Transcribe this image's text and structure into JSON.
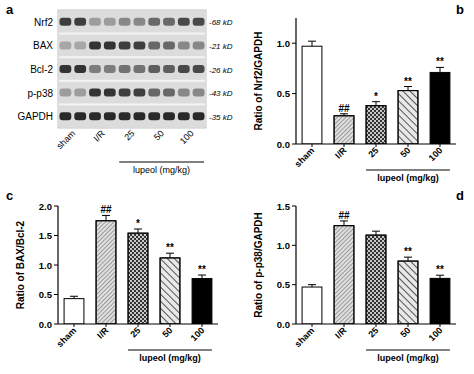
{
  "chart_data": [
    {
      "type": "blot",
      "panel": "a",
      "categories": [
        "sham",
        "I/R",
        "25",
        "50",
        "100"
      ],
      "x_group_label": "lupeol (mg/kg)",
      "rows": [
        {
          "name": "Nrf2",
          "size": "-68 kD",
          "intensities": [
            0.8,
            0.35,
            0.45,
            0.6,
            0.75
          ]
        },
        {
          "name": "BAX",
          "size": "-21 kD",
          "intensities": [
            0.3,
            0.85,
            0.8,
            0.6,
            0.45
          ]
        },
        {
          "name": "Bcl-2",
          "size": "-26 kD",
          "intensities": [
            0.85,
            0.5,
            0.55,
            0.65,
            0.75
          ]
        },
        {
          "name": "p-p38",
          "size": "-43 kD",
          "intensities": [
            0.35,
            0.85,
            0.8,
            0.6,
            0.45
          ]
        },
        {
          "name": "GAPDH",
          "size": "-35 kD",
          "intensities": [
            0.9,
            0.9,
            0.9,
            0.9,
            0.9
          ]
        }
      ]
    },
    {
      "type": "bar",
      "panel": "b",
      "y_label": "Ratio of Nrf2/GAPDH",
      "categories": [
        "sham",
        "I/R",
        "25",
        "50",
        "100"
      ],
      "x_group_label": "lupeol (mg/kg)",
      "values": [
        0.97,
        0.28,
        0.38,
        0.53,
        0.71
      ],
      "errors": [
        0.05,
        0.02,
        0.04,
        0.04,
        0.05
      ],
      "annotations": [
        null,
        "##",
        "*",
        "**",
        "**"
      ],
      "colors": [
        "#ffffff",
        "#e0e0e0",
        "#c8c8c8",
        "#e8e8e8",
        "#000000"
      ],
      "ylim": [
        0,
        1.25
      ],
      "yticks": [
        {
          "value": 0,
          "label": "0.0"
        },
        {
          "value": 0.5,
          "label": "0.5"
        },
        {
          "value": 1,
          "label": "1.0"
        }
      ]
    },
    {
      "type": "bar",
      "panel": "c",
      "y_label": "Ratio of BAX/Bcl-2",
      "categories": [
        "sham",
        "I/R",
        "25",
        "50",
        "100"
      ],
      "x_group_label": "lupeol (mg/kg)",
      "values": [
        0.43,
        1.75,
        1.54,
        1.12,
        0.77
      ],
      "errors": [
        0.04,
        0.09,
        0.07,
        0.08,
        0.06
      ],
      "annotations": [
        null,
        "##",
        "*",
        "**",
        "**"
      ],
      "colors": [
        "#ffffff",
        "#e0e0e0",
        "#c8c8c8",
        "#e8e8e8",
        "#000000"
      ],
      "ylim": [
        0,
        2
      ],
      "yticks": [
        {
          "value": 0,
          "label": "0.0"
        },
        {
          "value": 0.5,
          "label": "0.5"
        },
        {
          "value": 1,
          "label": "1.0"
        },
        {
          "value": 1.5,
          "label": "1.5"
        },
        {
          "value": 2,
          "label": "2.0"
        }
      ]
    },
    {
      "type": "bar",
      "panel": "d",
      "y_label": "Ratio of p-p38/GAPDH",
      "categories": [
        "sham",
        "I/R",
        "25",
        "50",
        "100"
      ],
      "x_group_label": "lupeol (mg/kg)",
      "values": [
        0.47,
        1.25,
        1.13,
        0.8,
        0.58
      ],
      "errors": [
        0.03,
        0.06,
        0.05,
        0.05,
        0.04
      ],
      "annotations": [
        null,
        "##",
        null,
        "**",
        "**"
      ],
      "colors": [
        "#ffffff",
        "#e0e0e0",
        "#c8c8c8",
        "#e8e8e8",
        "#000000"
      ],
      "ylim": [
        0,
        1.5
      ],
      "yticks": [
        {
          "value": 0,
          "label": "0.0"
        },
        {
          "value": 0.5,
          "label": "0.5"
        },
        {
          "value": 1,
          "label": "1.0"
        },
        {
          "value": 1.5,
          "label": "1.5"
        }
      ]
    }
  ]
}
